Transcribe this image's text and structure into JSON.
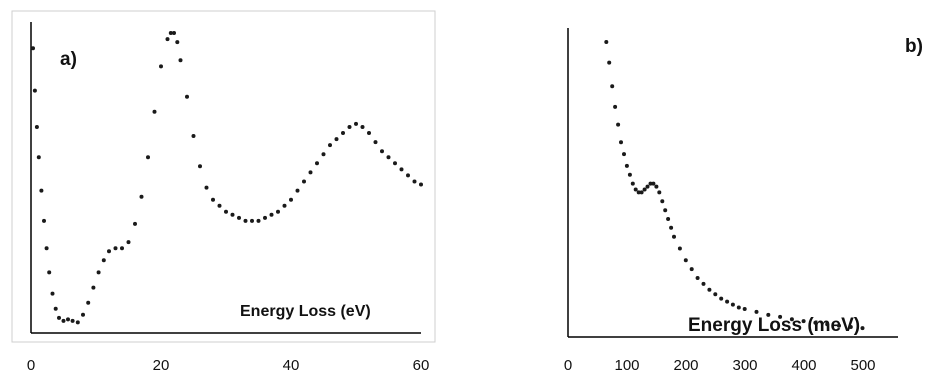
{
  "chart_data": [
    {
      "type": "scatter",
      "panel_label": "a)",
      "xlabel": "Energy Loss (eV)",
      "ylabel": "",
      "xlim": [
        0,
        60
      ],
      "xticks": [
        "0",
        "20",
        "40",
        "60"
      ],
      "grid": false,
      "yaxis_ticks": false,
      "series": [
        {
          "color": "#1a1a1a",
          "x": [
            0.3,
            0.6,
            0.9,
            1.2,
            1.6,
            2.0,
            2.4,
            2.8,
            3.3,
            3.8,
            4.3,
            5.0,
            5.7,
            6.4,
            7.2,
            8.0,
            8.8,
            9.6,
            10.4,
            11.2,
            12.0,
            13.0,
            14.0,
            15.0,
            16.0,
            17.0,
            18.0,
            19.0,
            20.0,
            21.0,
            21.5,
            22.0,
            22.5,
            23.0,
            24.0,
            25.0,
            26.0,
            27.0,
            28.0,
            29.0,
            30.0,
            31.0,
            32.0,
            33.0,
            34.0,
            35.0,
            36.0,
            37.0,
            38.0,
            39.0,
            40.0,
            41.0,
            42.0,
            43.0,
            44.0,
            45.0,
            46.0,
            47.0,
            48.0,
            49.0,
            50.0,
            51.0,
            52.0,
            53.0,
            54.0,
            55.0,
            56.0,
            57.0,
            58.0,
            59.0,
            60.0
          ],
          "y": [
            0.94,
            0.8,
            0.68,
            0.58,
            0.47,
            0.37,
            0.28,
            0.2,
            0.13,
            0.08,
            0.05,
            0.04,
            0.045,
            0.04,
            0.035,
            0.06,
            0.1,
            0.15,
            0.2,
            0.24,
            0.27,
            0.28,
            0.28,
            0.3,
            0.36,
            0.45,
            0.58,
            0.73,
            0.88,
            0.97,
            0.99,
            0.99,
            0.96,
            0.9,
            0.78,
            0.65,
            0.55,
            0.48,
            0.44,
            0.42,
            0.4,
            0.39,
            0.38,
            0.37,
            0.37,
            0.37,
            0.38,
            0.39,
            0.4,
            0.42,
            0.44,
            0.47,
            0.5,
            0.53,
            0.56,
            0.59,
            0.62,
            0.64,
            0.66,
            0.68,
            0.69,
            0.68,
            0.66,
            0.63,
            0.6,
            0.58,
            0.56,
            0.54,
            0.52,
            0.5,
            0.49
          ]
        }
      ]
    },
    {
      "type": "scatter",
      "panel_label": "b)",
      "xlabel": "Energy Loss (meV)",
      "ylabel": "",
      "xlim": [
        0,
        550
      ],
      "xticks": [
        "0",
        "100",
        "200",
        "300",
        "400",
        "500"
      ],
      "grid": false,
      "yaxis_ticks": false,
      "series": [
        {
          "color": "#1a1a1a",
          "x": [
            65,
            70,
            75,
            80,
            85,
            90,
            95,
            100,
            105,
            110,
            115,
            120,
            125,
            130,
            135,
            140,
            145,
            150,
            155,
            160,
            165,
            170,
            175,
            180,
            190,
            200,
            210,
            220,
            230,
            240,
            250,
            260,
            270,
            280,
            290,
            300,
            320,
            340,
            360,
            380,
            400,
            420,
            440,
            460,
            480,
            500
          ],
          "y": [
            1.0,
            0.93,
            0.85,
            0.78,
            0.72,
            0.66,
            0.62,
            0.58,
            0.55,
            0.52,
            0.5,
            0.49,
            0.49,
            0.5,
            0.51,
            0.52,
            0.52,
            0.51,
            0.49,
            0.46,
            0.43,
            0.4,
            0.37,
            0.34,
            0.3,
            0.26,
            0.23,
            0.2,
            0.18,
            0.16,
            0.145,
            0.13,
            0.12,
            0.11,
            0.1,
            0.095,
            0.085,
            0.075,
            0.068,
            0.06,
            0.054,
            0.048,
            0.043,
            0.038,
            0.034,
            0.03
          ]
        }
      ]
    }
  ]
}
